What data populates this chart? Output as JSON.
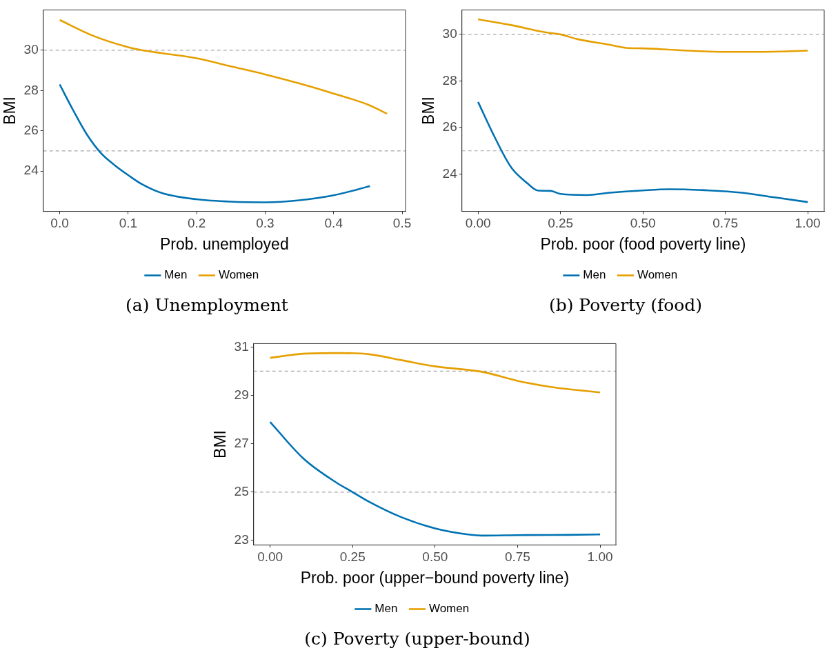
{
  "chart_data": [
    {
      "type": "line",
      "title": "(a) Unemployment",
      "xlabel": "Prob. unemployed",
      "ylabel": "BMI",
      "legend": "bottom",
      "xlim": [
        -0.024,
        0.505
      ],
      "ylim": [
        22,
        32
      ],
      "xticks": [
        {
          "value": 0,
          "label": "0.0"
        },
        {
          "value": 0.1,
          "label": "0.1"
        },
        {
          "value": 0.2,
          "label": "0.2"
        },
        {
          "value": 0.3,
          "label": "0.3"
        },
        {
          "value": 0.4,
          "label": "0.4"
        },
        {
          "value": 0.5,
          "label": "0.5"
        }
      ],
      "yticks": [
        24,
        26,
        28,
        30
      ],
      "ref_lines": [
        {
          "axis": "y",
          "value": 25,
          "color": "#a6a6a6",
          "line_style": "dashed"
        },
        {
          "axis": "y",
          "value": 30,
          "color": "#a6a6a6",
          "line_style": "dashed"
        }
      ],
      "series": [
        {
          "name": "Men",
          "color": "#0072b2",
          "x": [
            0,
            0.02,
            0.04,
            0.06,
            0.08,
            0.1,
            0.12,
            0.15,
            0.2,
            0.25,
            0.3,
            0.35,
            0.4,
            0.453
          ],
          "values": [
            28.3,
            27.0,
            25.8,
            24.9,
            24.3,
            23.8,
            23.35,
            22.9,
            22.6,
            22.48,
            22.45,
            22.55,
            22.8,
            23.25
          ]
        },
        {
          "name": "Women",
          "color": "#e69f00",
          "x": [
            0,
            0.05,
            0.1,
            0.12,
            0.15,
            0.2,
            0.25,
            0.3,
            0.35,
            0.4,
            0.45,
            0.478
          ],
          "values": [
            31.5,
            30.7,
            30.15,
            30.0,
            29.85,
            29.6,
            29.2,
            28.8,
            28.35,
            27.85,
            27.3,
            26.85
          ]
        }
      ]
    },
    {
      "type": "line",
      "title": "(b) Poverty (food)",
      "xlabel": "Prob. poor (food poverty line)",
      "ylabel": "BMI",
      "legend": "bottom",
      "xlim": [
        -0.049,
        1.05
      ],
      "ylim": [
        22.4,
        31.05
      ],
      "xticks": [
        {
          "value": 0,
          "label": "0.00"
        },
        {
          "value": 0.25,
          "label": "0.25"
        },
        {
          "value": 0.5,
          "label": "0.50"
        },
        {
          "value": 0.75,
          "label": "0.75"
        },
        {
          "value": 1,
          "label": "1.00"
        }
      ],
      "yticks": [
        24,
        26,
        28,
        30
      ],
      "ref_lines": [
        {
          "axis": "y",
          "value": 25,
          "color": "#a6a6a6",
          "line_style": "dashed"
        },
        {
          "axis": "y",
          "value": 30,
          "color": "#a6a6a6",
          "line_style": "dashed"
        }
      ],
      "series": [
        {
          "name": "Men",
          "color": "#0072b2",
          "x": [
            0,
            0.05,
            0.1,
            0.15,
            0.18,
            0.22,
            0.25,
            0.33,
            0.4,
            0.5,
            0.58,
            0.7,
            0.8,
            0.9,
            1.0
          ],
          "values": [
            27.1,
            25.6,
            24.3,
            23.6,
            23.3,
            23.28,
            23.15,
            23.1,
            23.2,
            23.3,
            23.35,
            23.3,
            23.2,
            23.0,
            22.8
          ]
        },
        {
          "name": "Women",
          "color": "#e69f00",
          "x": [
            0,
            0.1,
            0.2,
            0.25,
            0.3,
            0.4,
            0.45,
            0.5,
            0.6,
            0.75,
            0.85,
            1.0
          ],
          "values": [
            30.65,
            30.4,
            30.1,
            30.0,
            29.8,
            29.55,
            29.42,
            29.4,
            29.33,
            29.25,
            29.25,
            29.3
          ]
        }
      ]
    },
    {
      "type": "line",
      "title": "(c) Poverty (upper-bound)",
      "xlabel": "Prob. poor (upper−bound poverty line)",
      "ylabel": "BMI",
      "legend": "bottom",
      "xlim": [
        -0.05,
        1.048
      ],
      "ylim": [
        22.81,
        31.14
      ],
      "xticks": [
        {
          "value": 0,
          "label": "0.00"
        },
        {
          "value": 0.25,
          "label": "0.25"
        },
        {
          "value": 0.5,
          "label": "0.50"
        },
        {
          "value": 0.75,
          "label": "0.75"
        },
        {
          "value": 1,
          "label": "1.00"
        }
      ],
      "yticks": [
        23,
        25,
        27,
        29,
        31
      ],
      "ref_lines": [
        {
          "axis": "y",
          "value": 25,
          "color": "#a6a6a6",
          "line_style": "dashed"
        },
        {
          "axis": "y",
          "value": 30,
          "color": "#a6a6a6",
          "line_style": "dashed"
        }
      ],
      "series": [
        {
          "name": "Men",
          "color": "#0072b2",
          "x": [
            0,
            0.1,
            0.2,
            0.25,
            0.3,
            0.4,
            0.5,
            0.6,
            0.65,
            0.75,
            0.9,
            1.0
          ],
          "values": [
            27.9,
            26.4,
            25.4,
            25.0,
            24.6,
            23.95,
            23.5,
            23.25,
            23.2,
            23.22,
            23.23,
            23.25
          ]
        },
        {
          "name": "Women",
          "color": "#e69f00",
          "x": [
            0,
            0.1,
            0.2,
            0.3,
            0.4,
            0.5,
            0.6,
            0.65,
            0.75,
            0.85,
            1.0
          ],
          "values": [
            30.55,
            30.72,
            30.75,
            30.7,
            30.45,
            30.2,
            30.05,
            29.95,
            29.6,
            29.35,
            29.12
          ]
        }
      ]
    }
  ]
}
